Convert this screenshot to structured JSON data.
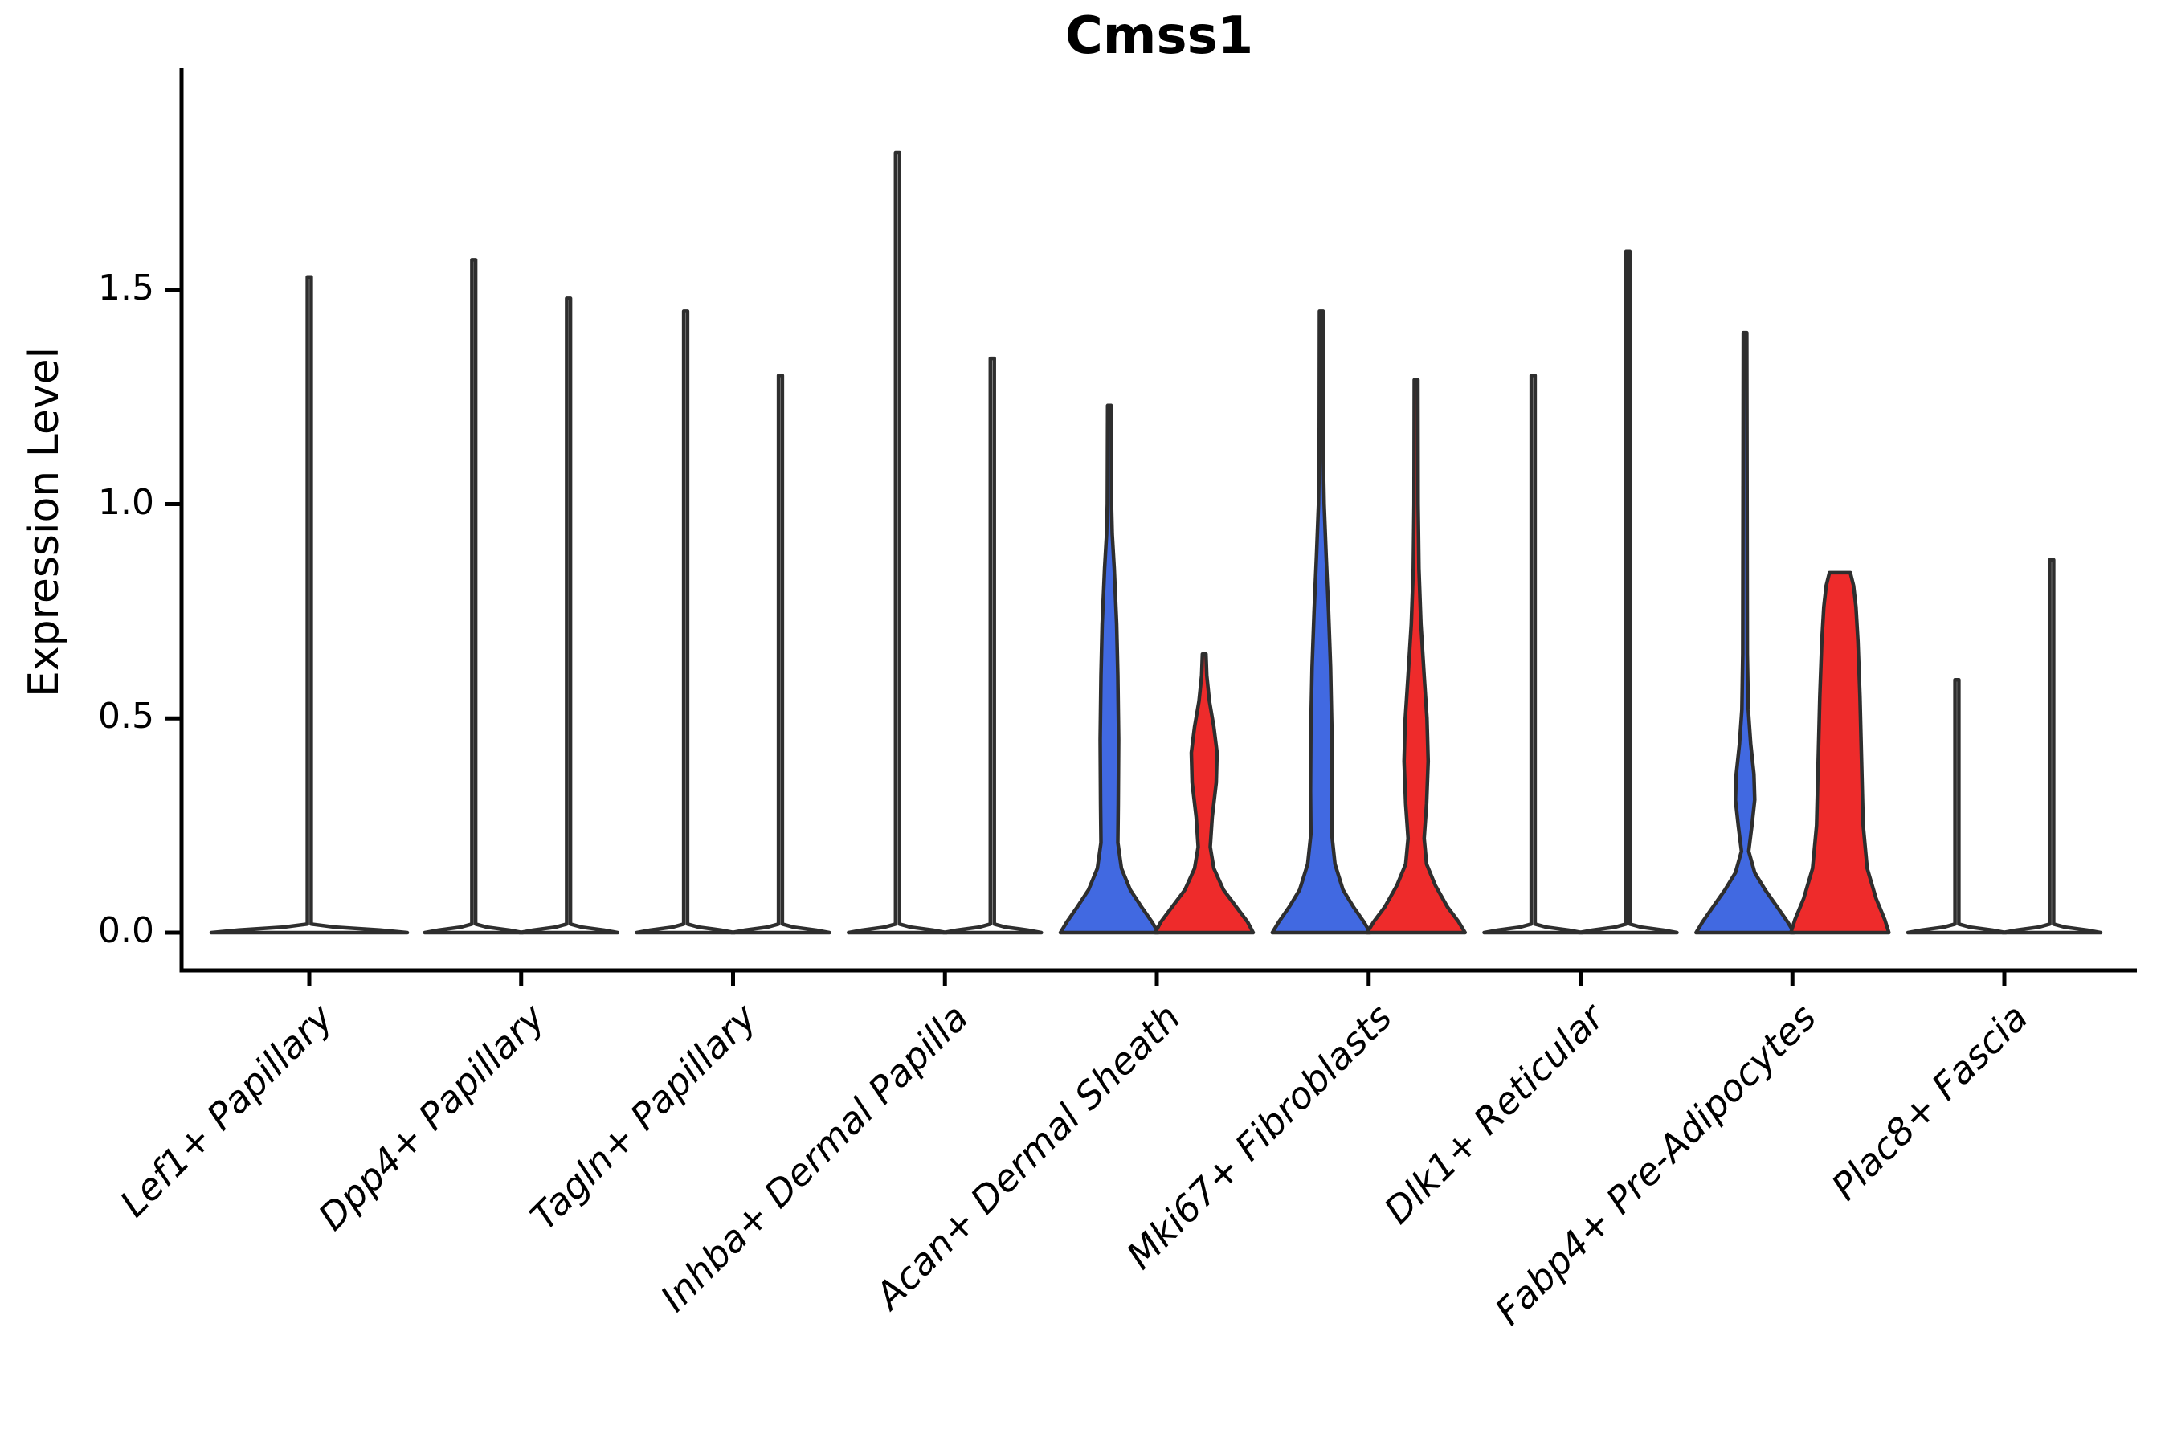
{
  "title": "Cmss1",
  "y_axis": {
    "label": "Expression Level",
    "ticks": [
      "0.0",
      "0.5",
      "1.0",
      "1.5"
    ],
    "tick_values": [
      0.0,
      0.5,
      1.0,
      1.5
    ]
  },
  "chart_data": {
    "type": "violin",
    "title": "Cmss1",
    "xlabel": "",
    "ylabel": "Expression Level",
    "ylim": [
      0,
      1.9
    ],
    "grid": false,
    "legend": "none",
    "colors": {
      "left_condition": "#4169E1",
      "right_condition": "#EE2B2B",
      "outline": "#2E2E2E",
      "unfilled": "#FFFFFF",
      "axis": "#000000"
    },
    "categories": [
      {
        "label": "Lef1+ Papillary",
        "violins": [
          {
            "position": "center",
            "offset": 0,
            "fill": "#FFFFFF",
            "max_expression": 1.53,
            "profile": [
              [
                0,
                122
              ],
              [
                0.006,
                88
              ],
              [
                0.013,
                32
              ],
              [
                0.02,
                2.4
              ],
              [
                1.53,
                2.4
              ]
            ]
          }
        ]
      },
      {
        "label": "Dpp4+ Papillary",
        "violins": [
          {
            "position": "left",
            "offset": -59,
            "fill": "#FFFFFF",
            "max_expression": 1.57,
            "profile": [
              [
                0,
                61
              ],
              [
                0.006,
                44
              ],
              [
                0.013,
                16
              ],
              [
                0.02,
                2.4
              ],
              [
                1.57,
                2.4
              ]
            ]
          },
          {
            "position": "right",
            "offset": 59,
            "fill": "#FFFFFF",
            "max_expression": 1.48,
            "profile": [
              [
                0,
                61
              ],
              [
                0.006,
                44
              ],
              [
                0.013,
                16
              ],
              [
                0.02,
                2.4
              ],
              [
                1.48,
                2.4
              ]
            ]
          }
        ]
      },
      {
        "label": "Tagln+ Papillary",
        "violins": [
          {
            "position": "left",
            "offset": -59,
            "fill": "#FFFFFF",
            "max_expression": 1.45,
            "profile": [
              [
                0,
                61
              ],
              [
                0.006,
                44
              ],
              [
                0.013,
                16
              ],
              [
                0.02,
                2.4
              ],
              [
                1.45,
                2.4
              ]
            ]
          },
          {
            "position": "right",
            "offset": 59,
            "fill": "#FFFFFF",
            "max_expression": 1.3,
            "profile": [
              [
                0,
                61
              ],
              [
                0.006,
                44
              ],
              [
                0.013,
                16
              ],
              [
                0.02,
                2.4
              ],
              [
                1.3,
                2.4
              ]
            ]
          }
        ]
      },
      {
        "label": "Inhba+ Dermal Papilla",
        "violins": [
          {
            "position": "left",
            "offset": -59,
            "fill": "#FFFFFF",
            "max_expression": 1.82,
            "profile": [
              [
                0,
                61
              ],
              [
                0.006,
                44
              ],
              [
                0.013,
                16
              ],
              [
                0.02,
                2.4
              ],
              [
                1.82,
                2.4
              ]
            ]
          },
          {
            "position": "right",
            "offset": 59,
            "fill": "#FFFFFF",
            "max_expression": 1.34,
            "profile": [
              [
                0,
                61
              ],
              [
                0.006,
                44
              ],
              [
                0.013,
                16
              ],
              [
                0.02,
                2.4
              ],
              [
                1.34,
                2.4
              ]
            ]
          }
        ]
      },
      {
        "label": "Acan+ Dermal Sheath",
        "violins": [
          {
            "position": "left",
            "offset": -59,
            "fill": "#4169E1",
            "max_expression": 1.23,
            "profile": [
              [
                0,
                61
              ],
              [
                0.025,
                53
              ],
              [
                0.06,
                40
              ],
              [
                0.1,
                26
              ],
              [
                0.15,
                15
              ],
              [
                0.21,
                10.5
              ],
              [
                0.3,
                11
              ],
              [
                0.45,
                11.5
              ],
              [
                0.6,
                10.5
              ],
              [
                0.72,
                9
              ],
              [
                0.85,
                6
              ],
              [
                0.93,
                3.5
              ],
              [
                1.0,
                2.6
              ],
              [
                1.23,
                2.2
              ]
            ]
          },
          {
            "position": "right",
            "offset": 59,
            "fill": "#EE2B2B",
            "max_expression": 0.65,
            "profile": [
              [
                0,
                61
              ],
              [
                0.025,
                54
              ],
              [
                0.06,
                40
              ],
              [
                0.1,
                24
              ],
              [
                0.15,
                12
              ],
              [
                0.2,
                7.5
              ],
              [
                0.27,
                10
              ],
              [
                0.35,
                15
              ],
              [
                0.42,
                16
              ],
              [
                0.48,
                12
              ],
              [
                0.54,
                6.5
              ],
              [
                0.6,
                3.2
              ],
              [
                0.65,
                2.2
              ]
            ]
          }
        ]
      },
      {
        "label": "Mki67+ Fibroblasts",
        "violins": [
          {
            "position": "left",
            "offset": -59,
            "fill": "#4169E1",
            "max_expression": 1.45,
            "profile": [
              [
                0,
                61
              ],
              [
                0.025,
                53
              ],
              [
                0.06,
                40
              ],
              [
                0.1,
                27
              ],
              [
                0.16,
                17
              ],
              [
                0.23,
                13
              ],
              [
                0.33,
                13.5
              ],
              [
                0.48,
                13
              ],
              [
                0.62,
                11.5
              ],
              [
                0.75,
                9
              ],
              [
                0.88,
                6
              ],
              [
                1.0,
                3.5
              ],
              [
                1.1,
                2.6
              ],
              [
                1.45,
                2.2
              ]
            ]
          },
          {
            "position": "right",
            "offset": 59,
            "fill": "#EE2B2B",
            "max_expression": 1.29,
            "profile": [
              [
                0,
                61
              ],
              [
                0.025,
                53
              ],
              [
                0.06,
                39
              ],
              [
                0.11,
                24
              ],
              [
                0.16,
                13
              ],
              [
                0.22,
                10
              ],
              [
                0.3,
                13
              ],
              [
                0.4,
                15
              ],
              [
                0.5,
                13.5
              ],
              [
                0.6,
                10
              ],
              [
                0.72,
                6
              ],
              [
                0.85,
                3.5
              ],
              [
                1.0,
                2.6
              ],
              [
                1.29,
                2.2
              ]
            ]
          }
        ]
      },
      {
        "label": "Dlk1+ Reticular",
        "violins": [
          {
            "position": "left",
            "offset": -59,
            "fill": "#FFFFFF",
            "max_expression": 1.3,
            "profile": [
              [
                0,
                61
              ],
              [
                0.006,
                44
              ],
              [
                0.013,
                16
              ],
              [
                0.02,
                2.4
              ],
              [
                1.3,
                2.4
              ]
            ]
          },
          {
            "position": "right",
            "offset": 59,
            "fill": "#FFFFFF",
            "max_expression": 1.59,
            "profile": [
              [
                0,
                61
              ],
              [
                0.006,
                44
              ],
              [
                0.013,
                16
              ],
              [
                0.02,
                2.4
              ],
              [
                1.59,
                2.4
              ]
            ]
          }
        ]
      },
      {
        "label": "Fabp4+ Pre-Adipocytes",
        "violins": [
          {
            "position": "left",
            "offset": -59,
            "fill": "#4169E1",
            "max_expression": 1.4,
            "profile": [
              [
                0,
                61
              ],
              [
                0.025,
                53
              ],
              [
                0.06,
                40
              ],
              [
                0.1,
                25
              ],
              [
                0.14,
                12
              ],
              [
                0.19,
                4.5
              ],
              [
                0.25,
                8.5
              ],
              [
                0.31,
                12
              ],
              [
                0.37,
                11
              ],
              [
                0.44,
                7
              ],
              [
                0.52,
                4
              ],
              [
                0.65,
                2.8
              ],
              [
                1.4,
                2.2
              ]
            ]
          },
          {
            "position": "right",
            "offset": 59,
            "fill": "#EE2B2B",
            "max_expression": 0.84,
            "profile": [
              [
                0,
                61
              ],
              [
                0.03,
                56
              ],
              [
                0.08,
                45
              ],
              [
                0.15,
                34
              ],
              [
                0.25,
                29
              ],
              [
                0.4,
                27
              ],
              [
                0.55,
                25
              ],
              [
                0.68,
                22.5
              ],
              [
                0.76,
                20
              ],
              [
                0.81,
                17
              ],
              [
                0.84,
                13
              ]
            ]
          }
        ]
      },
      {
        "label": "Plac8+ Fascia",
        "violins": [
          {
            "position": "left",
            "offset": -59,
            "fill": "#FFFFFF",
            "max_expression": 0.59,
            "profile": [
              [
                0,
                61
              ],
              [
                0.006,
                44
              ],
              [
                0.013,
                16
              ],
              [
                0.02,
                2.4
              ],
              [
                0.59,
                2.4
              ]
            ]
          },
          {
            "position": "right",
            "offset": 59,
            "fill": "#FFFFFF",
            "max_expression": 0.87,
            "profile": [
              [
                0,
                61
              ],
              [
                0.006,
                44
              ],
              [
                0.013,
                16
              ],
              [
                0.02,
                2.4
              ],
              [
                0.87,
                2.4
              ]
            ]
          }
        ]
      }
    ]
  }
}
